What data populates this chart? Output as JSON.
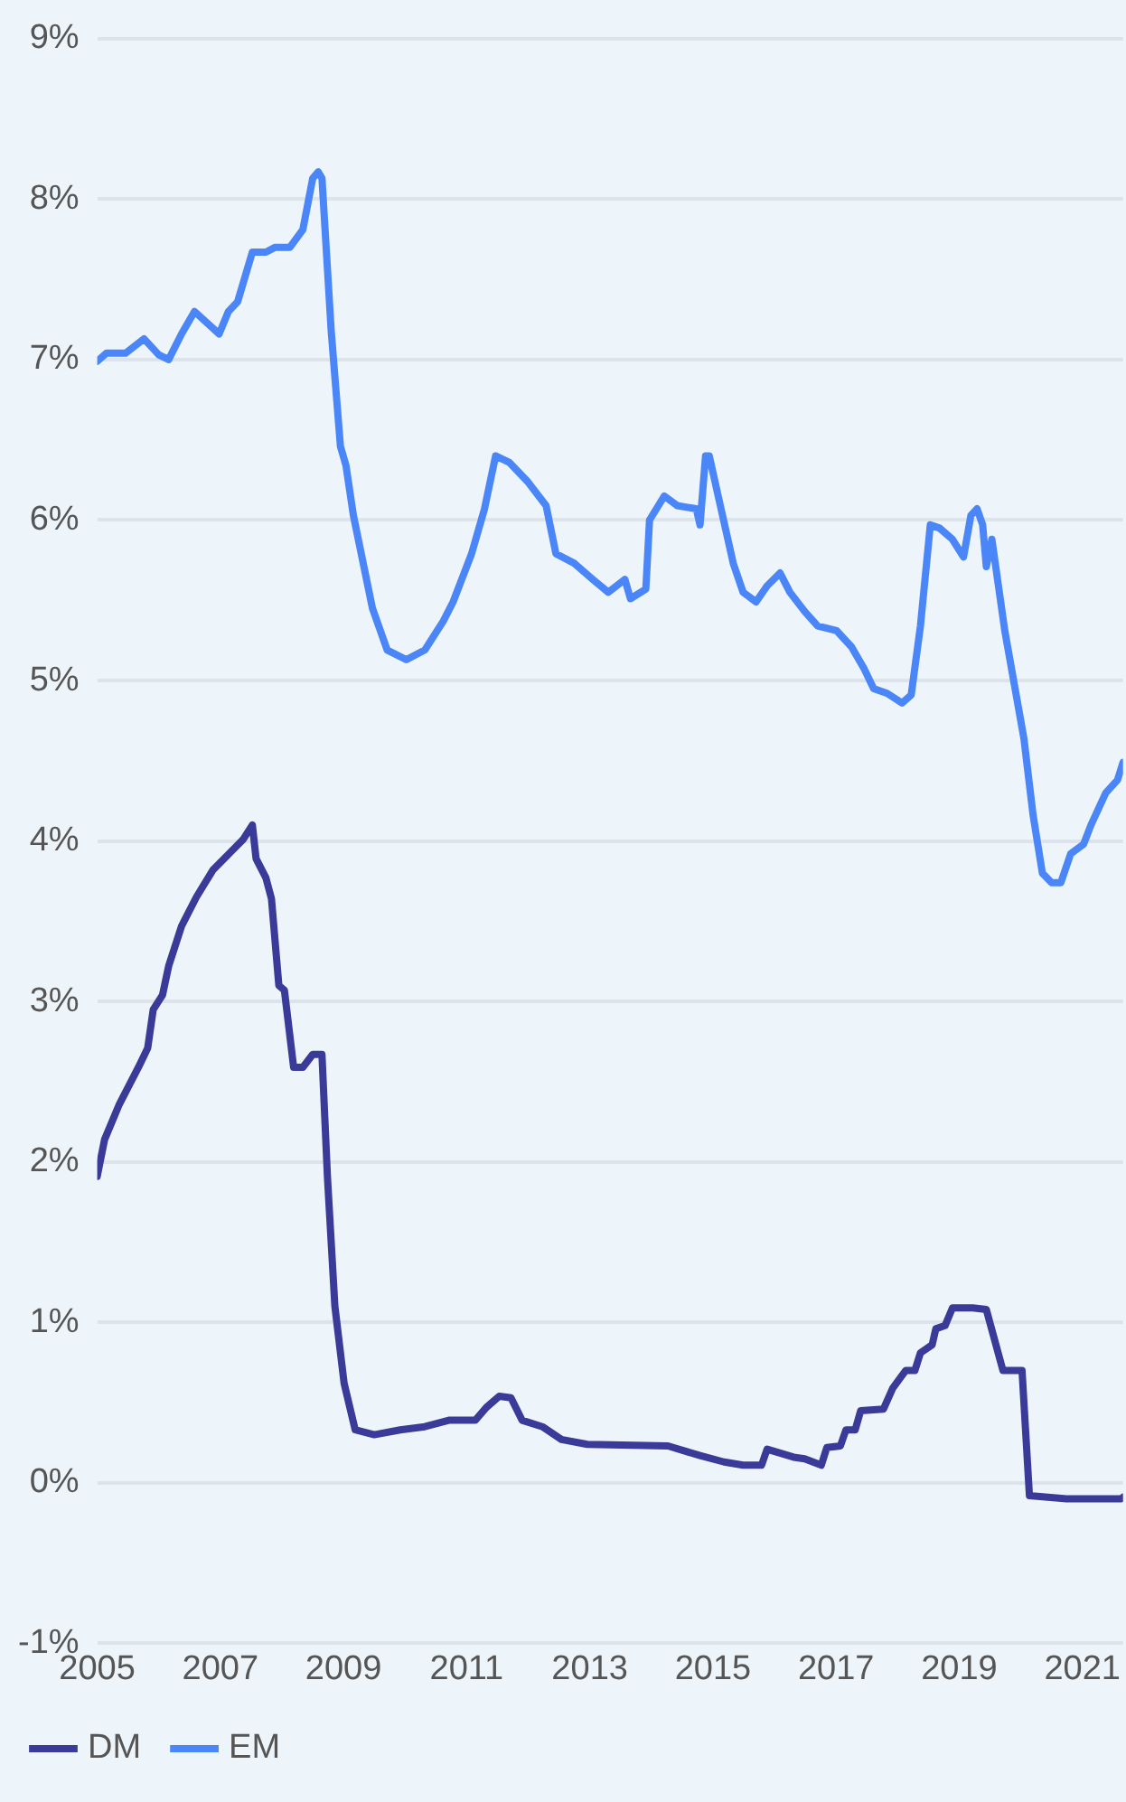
{
  "chart_data": {
    "type": "line",
    "xlim": [
      2005,
      2021.66
    ],
    "xticks": [
      2005,
      2007,
      2009,
      2011,
      2013,
      2015,
      2017,
      2019,
      2021
    ],
    "ylim": [
      -1,
      9
    ],
    "yticks": [
      {
        "value": -1,
        "label": "-1%"
      },
      {
        "value": 0,
        "label": "0%"
      },
      {
        "value": 1,
        "label": "1%"
      },
      {
        "value": 2,
        "label": "2%"
      },
      {
        "value": 3,
        "label": "3%"
      },
      {
        "value": 4,
        "label": "4%"
      },
      {
        "value": 5,
        "label": "5%"
      },
      {
        "value": 6,
        "label": "6%"
      },
      {
        "value": 7,
        "label": "7%"
      },
      {
        "value": 8,
        "label": "8%"
      },
      {
        "value": 9,
        "label": "9%"
      }
    ],
    "grid": "y",
    "legend": "bottom left",
    "marker": "none",
    "line_style": "solid",
    "series": [
      {
        "name": "DM",
        "color": "#3a3a99",
        "x": [
          2005.0,
          2005.12,
          2005.36,
          2005.67,
          2005.82,
          2005.91,
          2006.06,
          2006.16,
          2006.37,
          2006.61,
          2006.88,
          2007.19,
          2007.37,
          2007.52,
          2007.58,
          2007.74,
          2007.83,
          2007.95,
          2008.04,
          2008.19,
          2008.34,
          2008.5,
          2008.65,
          2008.74,
          2008.86,
          2009.01,
          2009.19,
          2009.5,
          2009.92,
          2010.32,
          2010.71,
          2011.14,
          2011.32,
          2011.53,
          2011.72,
          2011.9,
          2012.23,
          2012.54,
          2012.96,
          2014.27,
          2014.79,
          2015.18,
          2015.49,
          2015.79,
          2015.88,
          2016.31,
          2016.49,
          2016.76,
          2016.85,
          2017.07,
          2017.16,
          2017.31,
          2017.4,
          2017.77,
          2017.92,
          2018.13,
          2018.28,
          2018.37,
          2018.56,
          2018.62,
          2018.77,
          2018.89,
          2019.22,
          2019.44,
          2019.71,
          2020.02,
          2020.14,
          2020.74,
          2021.63,
          2021.66
        ],
        "values": [
          1.91,
          2.14,
          2.36,
          2.59,
          2.71,
          2.95,
          3.04,
          3.22,
          3.47,
          3.65,
          3.82,
          3.94,
          4.01,
          4.1,
          3.89,
          3.77,
          3.64,
          3.1,
          3.07,
          2.59,
          2.59,
          2.67,
          2.67,
          1.9,
          1.1,
          0.62,
          0.33,
          0.3,
          0.33,
          0.35,
          0.39,
          0.39,
          0.47,
          0.54,
          0.53,
          0.39,
          0.35,
          0.27,
          0.24,
          0.23,
          0.17,
          0.13,
          0.11,
          0.11,
          0.21,
          0.16,
          0.15,
          0.11,
          0.22,
          0.23,
          0.33,
          0.33,
          0.45,
          0.46,
          0.59,
          0.7,
          0.7,
          0.81,
          0.86,
          0.96,
          0.98,
          1.09,
          1.09,
          1.08,
          0.7,
          0.7,
          -0.08,
          -0.1,
          -0.1,
          -0.09
        ]
      },
      {
        "name": "EM",
        "color": "#4a86f7",
        "x": [
          2005.0,
          2005.15,
          2005.46,
          2005.76,
          2006.0,
          2006.16,
          2006.37,
          2006.58,
          2006.98,
          2007.13,
          2007.28,
          2007.52,
          2007.74,
          2007.89,
          2008.13,
          2008.34,
          2008.5,
          2008.59,
          2008.65,
          2008.8,
          2008.95,
          2009.04,
          2009.16,
          2009.47,
          2009.71,
          2010.02,
          2010.32,
          2010.62,
          2010.78,
          2011.08,
          2011.29,
          2011.47,
          2011.69,
          2011.99,
          2012.29,
          2012.45,
          2012.75,
          2013.05,
          2013.3,
          2013.57,
          2013.66,
          2013.91,
          2013.97,
          2014.21,
          2014.42,
          2014.73,
          2014.79,
          2014.88,
          2014.94,
          2015.12,
          2015.33,
          2015.49,
          2015.7,
          2015.88,
          2016.09,
          2016.25,
          2016.49,
          2016.7,
          2017.01,
          2017.25,
          2017.46,
          2017.61,
          2017.83,
          2018.07,
          2018.22,
          2018.37,
          2018.53,
          2018.68,
          2018.89,
          2019.07,
          2019.19,
          2019.29,
          2019.38,
          2019.44,
          2019.53,
          2019.74,
          2020.05,
          2020.2,
          2020.35,
          2020.5,
          2020.65,
          2020.81,
          2021.02,
          2021.14,
          2021.38,
          2021.57,
          2021.66
        ],
        "values": [
          6.99,
          7.04,
          7.04,
          7.13,
          7.03,
          7.0,
          7.16,
          7.3,
          7.16,
          7.3,
          7.36,
          7.67,
          7.67,
          7.7,
          7.7,
          7.81,
          8.13,
          8.17,
          8.13,
          7.18,
          6.46,
          6.34,
          6.03,
          5.45,
          5.19,
          5.13,
          5.19,
          5.37,
          5.49,
          5.79,
          6.07,
          6.4,
          6.36,
          6.24,
          6.09,
          5.79,
          5.73,
          5.63,
          5.55,
          5.63,
          5.51,
          5.57,
          6.0,
          6.15,
          6.09,
          6.07,
          5.97,
          6.4,
          6.4,
          6.09,
          5.73,
          5.55,
          5.49,
          5.59,
          5.67,
          5.55,
          5.43,
          5.34,
          5.31,
          5.21,
          5.07,
          4.95,
          4.92,
          4.86,
          4.91,
          5.34,
          5.97,
          5.95,
          5.88,
          5.77,
          6.03,
          6.07,
          5.97,
          5.71,
          5.88,
          5.31,
          4.64,
          4.16,
          3.8,
          3.74,
          3.74,
          3.92,
          3.98,
          4.1,
          4.3,
          4.38,
          4.49
        ]
      }
    ]
  }
}
